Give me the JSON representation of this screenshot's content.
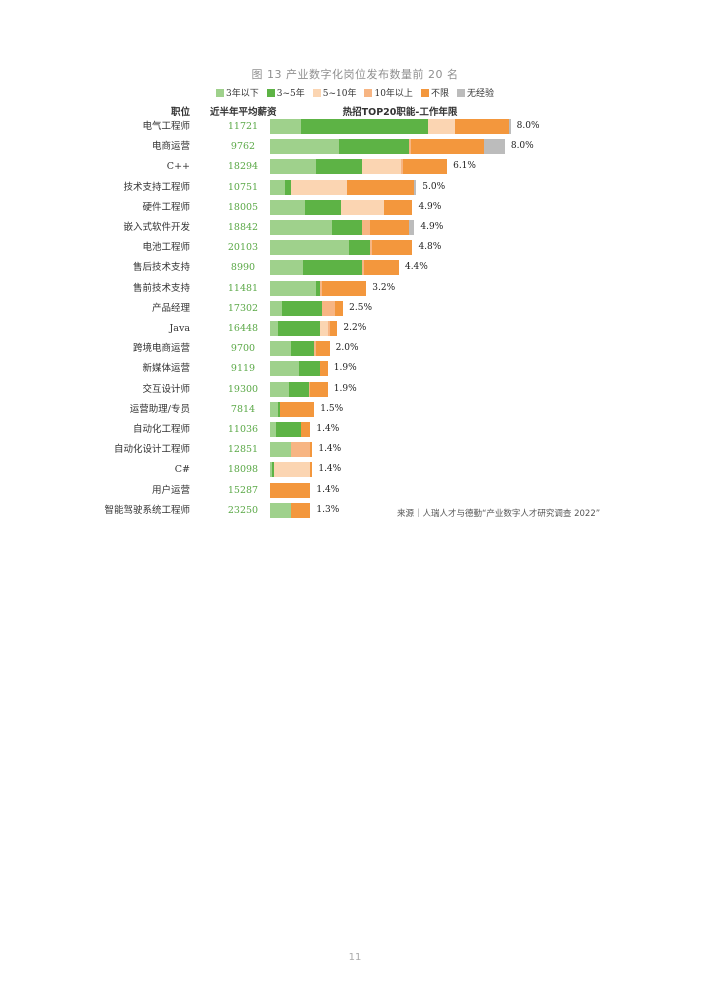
{
  "page": {
    "title": "图 13 产业数字化岗位发布数量前 20 名",
    "source": "来源｜人瑞人才与德勤“产业数字人才研究调查 2022”",
    "page_number": "11"
  },
  "colors": {
    "under3": "#9fd18c",
    "y3to5": "#5db345",
    "y5to10": "#fbd5b2",
    "over10": "#f7b583",
    "unlimited": "#f3973d",
    "noexp": "#bcbcbc",
    "salary_text": "#5aa846"
  },
  "chart_data": {
    "type": "bar",
    "orientation": "horizontal",
    "stacked": true,
    "title": "图 13 产业数字化岗位发布数量前 20 名",
    "columns": {
      "job": "职位",
      "salary": "近半年平均薪资",
      "mix": "热招TOP20职能-工作年限"
    },
    "legend_position": "top",
    "series": [
      {
        "name": "3年以下",
        "color_key": "under3"
      },
      {
        "name": "3~5年",
        "color_key": "y3to5"
      },
      {
        "name": "5~10年",
        "color_key": "y5to10"
      },
      {
        "name": "10年以上",
        "color_key": "over10"
      },
      {
        "name": "不限",
        "color_key": "unlimited"
      },
      {
        "name": "无经验",
        "color_key": "noexp"
      }
    ],
    "xlim": [
      0,
      8.0
    ],
    "rows": [
      {
        "job": "电气工程师",
        "salary": "11721",
        "total": 8.0,
        "total_label": "8.0%",
        "parts": [
          0.8,
          3.3,
          0.7,
          0.0,
          1.4,
          0.05
        ]
      },
      {
        "job": "电商运营",
        "salary": "9762",
        "total": 8.0,
        "total_label": "8.0%",
        "parts": [
          1.8,
          1.8,
          0.0,
          0.05,
          1.9,
          0.55
        ]
      },
      {
        "job": "C++",
        "salary": "18294",
        "total": 6.1,
        "total_label": "6.1%",
        "parts": [
          1.2,
          1.2,
          1.0,
          0.05,
          1.15,
          0.0
        ]
      },
      {
        "job": "技术支持工程师",
        "salary": "10751",
        "total": 5.0,
        "total_label": "5.0%",
        "parts": [
          0.4,
          0.15,
          1.45,
          0.0,
          1.75,
          0.05
        ]
      },
      {
        "job": "硬件工程师",
        "salary": "18005",
        "total": 4.9,
        "total_label": "4.9%",
        "parts": [
          0.9,
          0.95,
          1.1,
          0.0,
          0.75,
          0.0
        ]
      },
      {
        "job": "嵌入式软件开发",
        "salary": "18842",
        "total": 4.9,
        "total_label": "4.9%",
        "parts": [
          1.6,
          0.8,
          0.0,
          0.2,
          1.0,
          0.15
        ]
      },
      {
        "job": "电池工程师",
        "salary": "20103",
        "total": 4.8,
        "total_label": "4.8%",
        "parts": [
          2.05,
          0.55,
          0.0,
          0.05,
          1.05,
          0.0
        ]
      },
      {
        "job": "售后技术支持",
        "salary": "8990",
        "total": 4.4,
        "total_label": "4.4%",
        "parts": [
          0.85,
          1.55,
          0.0,
          0.05,
          0.9,
          0.0
        ]
      },
      {
        "job": "售前技术支持",
        "salary": "11481",
        "total": 3.2,
        "total_label": "3.2%",
        "parts": [
          1.2,
          0.1,
          0.0,
          0.05,
          1.15,
          0.0
        ]
      },
      {
        "job": "产品经理",
        "salary": "17302",
        "total": 2.5,
        "total_label": "2.5%",
        "parts": [
          0.3,
          1.05,
          0.0,
          0.35,
          0.2,
          0.0
        ]
      },
      {
        "job": "Java",
        "salary": "16448",
        "total": 2.2,
        "total_label": "2.2%",
        "parts": [
          0.2,
          1.1,
          0.2,
          0.05,
          0.2,
          0.0
        ]
      },
      {
        "job": "跨境电商运营",
        "salary": "9700",
        "total": 2.0,
        "total_label": "2.0%",
        "parts": [
          0.55,
          0.6,
          0.0,
          0.05,
          0.35,
          0.0
        ]
      },
      {
        "job": "新媒体运营",
        "salary": "9119",
        "total": 1.9,
        "total_label": "1.9%",
        "parts": [
          0.75,
          0.55,
          0.0,
          0.0,
          0.2,
          0.0
        ]
      },
      {
        "job": "交互设计师",
        "salary": "19300",
        "total": 1.9,
        "total_label": "1.9%",
        "parts": [
          0.5,
          0.5,
          0.0,
          0.05,
          0.45,
          0.0
        ]
      },
      {
        "job": "运营助理/专员",
        "salary": "7814",
        "total": 1.5,
        "total_label": "1.5%",
        "parts": [
          0.2,
          0.05,
          0.0,
          0.0,
          0.9,
          0.0
        ]
      },
      {
        "job": "自动化工程师",
        "salary": "11036",
        "total": 1.4,
        "total_label": "1.4%",
        "parts": [
          0.15,
          0.65,
          0.0,
          0.0,
          0.25,
          0.0
        ]
      },
      {
        "job": "自动化设计工程师",
        "salary": "12851",
        "total": 1.4,
        "total_label": "1.4%",
        "parts": [
          0.55,
          0.0,
          0.0,
          0.5,
          0.05,
          0.0
        ]
      },
      {
        "job": "C#",
        "salary": "18098",
        "total": 1.4,
        "total_label": "1.4%",
        "parts": [
          0.05,
          0.05,
          0.95,
          0.0,
          0.05,
          0.0
        ]
      },
      {
        "job": "用户运营",
        "salary": "15287",
        "total": 1.4,
        "total_label": "1.4%",
        "parts": [
          0.0,
          0.0,
          0.0,
          0.0,
          1.05,
          0.0
        ]
      },
      {
        "job": "智能驾驶系统工程师",
        "salary": "23250",
        "total": 1.3,
        "total_label": "1.3%",
        "parts": [
          0.55,
          0.0,
          0.0,
          0.0,
          0.5,
          0.0
        ]
      }
    ]
  }
}
